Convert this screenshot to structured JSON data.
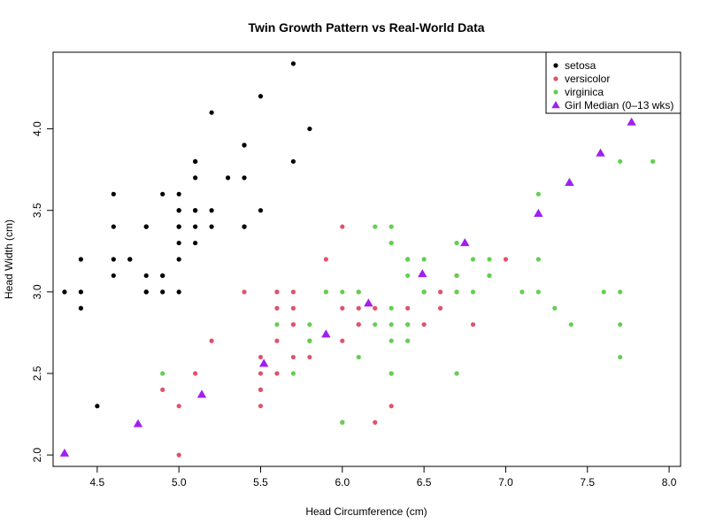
{
  "chart_data": {
    "type": "scatter",
    "title": "Twin Growth Pattern vs Real-World Data",
    "xlabel": "Head Circumference (cm)",
    "ylabel": "Head Width (cm)",
    "xlim": [
      4.23,
      8.07
    ],
    "ylim": [
      1.93,
      4.47
    ],
    "xticks": [
      "4.5",
      "5.0",
      "5.5",
      "6.0",
      "6.5",
      "7.0",
      "7.5",
      "8.0"
    ],
    "yticks": [
      "2.0",
      "2.5",
      "3.0",
      "3.5",
      "4.0"
    ],
    "legend_position": "top-right",
    "series": [
      {
        "name": "setosa",
        "color": "#000000",
        "shape": "circle",
        "x": [
          5.1,
          4.9,
          4.7,
          4.6,
          5.0,
          5.4,
          4.6,
          5.0,
          4.4,
          4.9,
          5.4,
          4.8,
          4.8,
          4.3,
          5.8,
          5.7,
          5.4,
          5.1,
          5.7,
          5.1,
          5.4,
          5.1,
          4.6,
          5.1,
          4.8,
          5.0,
          5.0,
          5.2,
          5.2,
          4.7,
          4.8,
          5.4,
          5.2,
          5.5,
          4.9,
          5.0,
          5.5,
          4.9,
          4.4,
          5.1,
          5.0,
          4.5,
          4.4,
          5.0,
          5.1,
          4.8,
          5.1,
          4.6,
          5.3,
          5.0
        ],
        "y": [
          3.5,
          3.0,
          3.2,
          3.1,
          3.6,
          3.9,
          3.4,
          3.4,
          2.9,
          3.1,
          3.7,
          3.4,
          3.0,
          3.0,
          4.0,
          4.4,
          3.9,
          3.5,
          3.8,
          3.8,
          3.4,
          3.7,
          3.6,
          3.3,
          3.4,
          3.0,
          3.4,
          3.5,
          3.4,
          3.2,
          3.1,
          3.4,
          4.1,
          4.2,
          3.1,
          3.2,
          3.5,
          3.6,
          3.0,
          3.4,
          3.5,
          2.3,
          3.2,
          3.5,
          3.8,
          3.0,
          3.8,
          3.2,
          3.7,
          3.3
        ]
      },
      {
        "name": "versicolor",
        "color": "#DF536B",
        "shape": "circle",
        "x": [
          7.0,
          6.4,
          6.9,
          5.5,
          6.5,
          5.7,
          6.3,
          4.9,
          6.6,
          5.2,
          5.0,
          5.9,
          6.0,
          6.1,
          5.6,
          6.7,
          5.6,
          5.8,
          6.2,
          5.6,
          5.9,
          6.1,
          6.3,
          6.1,
          6.4,
          6.6,
          6.8,
          6.7,
          6.0,
          5.7,
          5.5,
          5.5,
          5.8,
          6.0,
          5.4,
          6.0,
          6.7,
          6.3,
          5.6,
          5.5,
          5.5,
          6.1,
          5.8,
          5.0,
          5.6,
          5.7,
          5.7,
          6.2,
          5.1,
          5.7
        ],
        "y": [
          3.2,
          3.2,
          3.1,
          2.3,
          2.8,
          2.8,
          3.3,
          2.4,
          2.9,
          2.7,
          2.0,
          3.0,
          2.2,
          2.9,
          2.9,
          3.1,
          3.0,
          2.7,
          2.2,
          2.5,
          3.2,
          2.8,
          2.5,
          2.8,
          2.9,
          3.0,
          2.8,
          3.0,
          2.9,
          2.6,
          2.4,
          2.4,
          2.7,
          2.7,
          3.0,
          3.4,
          3.1,
          2.3,
          3.0,
          2.5,
          2.6,
          3.0,
          2.6,
          2.3,
          2.7,
          3.0,
          2.9,
          2.9,
          2.5,
          2.8
        ]
      },
      {
        "name": "virginica",
        "color": "#61D04F",
        "shape": "circle",
        "x": [
          6.3,
          5.8,
          7.1,
          6.3,
          6.5,
          7.6,
          4.9,
          7.3,
          6.7,
          7.2,
          6.5,
          6.4,
          6.8,
          5.7,
          5.8,
          6.4,
          6.5,
          7.7,
          7.7,
          6.0,
          6.9,
          5.6,
          7.7,
          6.3,
          6.7,
          7.2,
          6.2,
          6.1,
          6.4,
          7.2,
          7.4,
          7.9,
          6.4,
          6.3,
          6.1,
          7.7,
          6.3,
          6.4,
          6.0,
          6.9,
          6.7,
          6.9,
          5.8,
          6.8,
          6.7,
          6.7,
          6.3,
          6.5,
          6.2,
          5.9
        ],
        "y": [
          3.3,
          2.7,
          3.0,
          2.9,
          3.0,
          3.0,
          2.5,
          2.9,
          2.5,
          3.6,
          3.2,
          2.7,
          3.0,
          2.5,
          2.8,
          3.2,
          3.0,
          3.8,
          2.6,
          2.2,
          3.2,
          2.8,
          2.8,
          2.7,
          3.3,
          3.2,
          2.8,
          3.0,
          2.8,
          3.0,
          2.8,
          3.8,
          2.8,
          2.8,
          2.6,
          3.0,
          3.4,
          3.1,
          3.0,
          3.1,
          3.1,
          3.1,
          2.7,
          3.2,
          3.3,
          3.0,
          2.5,
          3.0,
          3.4,
          3.0
        ]
      },
      {
        "name": "Girl Median (0–13 wks)",
        "color": "#A020F0",
        "shape": "triangle",
        "x": [
          4.3,
          4.75,
          5.14,
          5.52,
          5.9,
          6.16,
          6.49,
          6.75,
          7.2,
          7.39,
          7.58,
          7.77
        ],
        "y": [
          2.01,
          2.19,
          2.37,
          2.56,
          2.74,
          2.93,
          3.11,
          3.3,
          3.48,
          3.67,
          3.85,
          4.04
        ]
      }
    ]
  }
}
